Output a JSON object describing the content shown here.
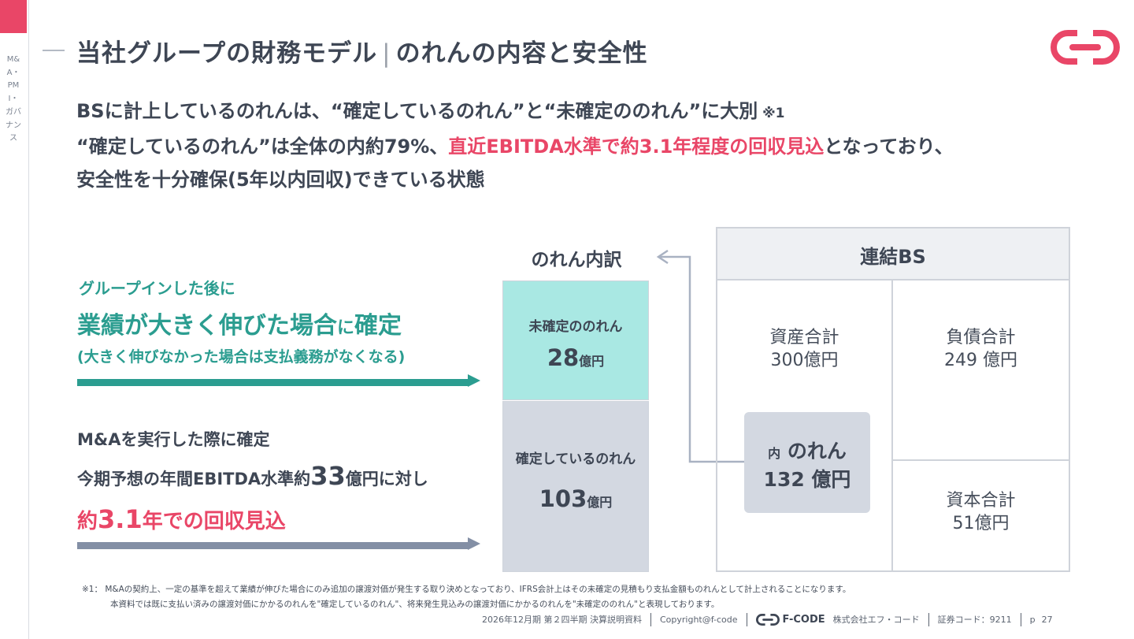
{
  "sidebar": {
    "section_label": "M&A・PMI・ガバナンス"
  },
  "header": {
    "title_main": "当社グループの財務モデル",
    "title_separator": "|",
    "title_sub": "のれんの内容と安全性"
  },
  "lead": {
    "line1": "BSに計上しているのれんは、“確定しているのれん”と“未確定ののれん”に大別",
    "line1_note": " ※1",
    "line2_pre": "“確定しているのれん”は全体の内約79%、",
    "line2_highlight": "直近EBITDA水準で約3.1年程度の回収見込",
    "line2_post": "となっており、",
    "line3": "安全性を十分確保(5年以内回収)できている状態"
  },
  "explain_unconfirmed": {
    "lead": "グループインした後に",
    "main_a": "業績が大きく伸びた場合",
    "main_mid": "に",
    "main_b": "確定",
    "note": "(大きく伸びなかった場合は支払義務がなくなる)"
  },
  "explain_confirmed": {
    "line1": "M&Aを実行した際に確定",
    "line2_a": "今期予想の年間EBITDA水準約",
    "line2_num": "33",
    "line2_b": "億円に対し",
    "line3_a": "約",
    "line3_num": "3.1",
    "line3_b": "年での回収見込"
  },
  "breakdown": {
    "title": "のれん内訳",
    "unconfirmed_label": "未確定ののれん",
    "unconfirmed_amount": "28",
    "unconfirmed_unit": "億円",
    "confirmed_label": "確定しているのれん",
    "confirmed_amount": "103",
    "confirmed_unit": "億円"
  },
  "bs": {
    "title": "連結BS",
    "assets_label": "資産合計",
    "assets_amount": "300億円",
    "liabilities_label": "負債合計",
    "liabilities_amount": "249 億円",
    "equity_label": "資本合計",
    "equity_amount": "51億円",
    "goodwill_prefix": "内",
    "goodwill_label": "のれん",
    "goodwill_amount": "132 億円"
  },
  "footnotes": {
    "note1": "※1： M&Aの契約上、一定の基準を超えて業績が伸びた場合にのみ追加の譲渡対価が発生する取り決めとなっており、IFRS会計上はその未確定の見積もり支払金額ものれんとして計上されることになります。",
    "note2": "本資料では既に支払い済みの譲渡対価にかかるのれんを\"確定しているのれん\"、将来発生見込みの譲渡対価にかかるのれんを\"未確定ののれん\"と表現しております。"
  },
  "footer": {
    "document": "2026年12月期 第２四半期 決算説明資料",
    "copyright": "Copyright@f-code",
    "brand": "F-CODE",
    "company": "株式会社エフ・コード",
    "stock_code": "証券コード：9211",
    "page_prefix": "p",
    "page_number": "27"
  },
  "colors": {
    "accent": "#e94667",
    "teal": "#2b9d90",
    "unconfirmed_fill": "#a9e8e3",
    "confirmed_fill": "#d3d8e1",
    "gray_arrow": "#838fa5",
    "text": "#3e4654"
  },
  "icons": {
    "logo": "f-code-logo-icon",
    "connector": "arrow-left-connector-icon"
  }
}
